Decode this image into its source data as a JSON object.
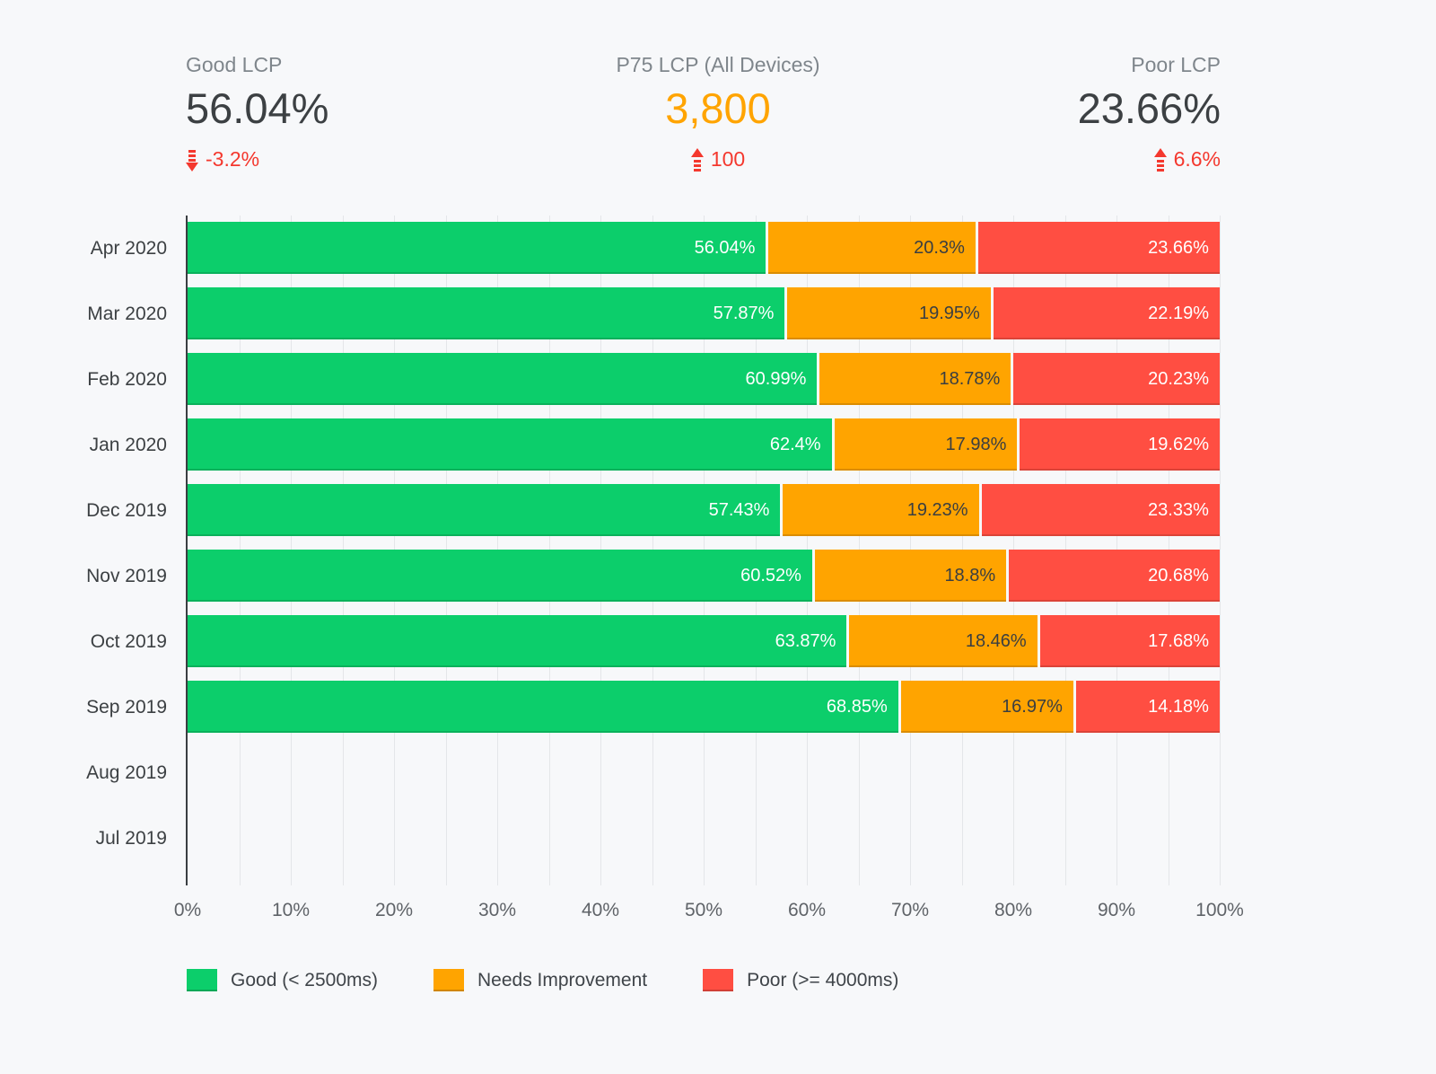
{
  "page": {
    "background": "#f7f8fa"
  },
  "kpis": [
    {
      "label": "Good LCP",
      "value": "56.04%",
      "delta": "-3.2%",
      "direction": "down",
      "value_color": "#3c4043",
      "delta_color": "#f4382e"
    },
    {
      "label": "P75 LCP (All Devices)",
      "value": "3,800",
      "delta": "100",
      "direction": "up",
      "value_color": "#ffa400",
      "delta_color": "#f4382e"
    },
    {
      "label": "Poor LCP",
      "value": "23.66%",
      "delta": "6.6%",
      "direction": "up",
      "value_color": "#3c4043",
      "delta_color": "#f4382e"
    }
  ],
  "chart_data": {
    "type": "bar",
    "orientation": "horizontal",
    "stacked": true,
    "grid": true,
    "grid_step": 5,
    "xlim": [
      0,
      100
    ],
    "categories": [
      "Apr 2020",
      "Mar 2020",
      "Feb 2020",
      "Jan 2020",
      "Dec 2019",
      "Nov 2019",
      "Oct 2019",
      "Sep 2019",
      "Aug 2019",
      "Jul 2019"
    ],
    "series": [
      {
        "name": "Good (< 2500ms)",
        "color": "#0cce6b",
        "label_color": "#ffffff",
        "values": [
          56.04,
          57.87,
          60.99,
          62.4,
          57.43,
          60.52,
          63.87,
          68.85,
          null,
          null
        ]
      },
      {
        "name": "Needs Improvement",
        "color": "#ffa400",
        "label_color": "#3a3e41",
        "values": [
          20.3,
          19.95,
          18.78,
          17.98,
          19.23,
          18.8,
          18.46,
          16.97,
          null,
          null
        ]
      },
      {
        "name": "Poor (>= 4000ms)",
        "color": "#ff4e42",
        "label_color": "#ffffff",
        "values": [
          23.66,
          22.19,
          20.23,
          19.62,
          23.33,
          20.68,
          17.68,
          14.18,
          null,
          null
        ]
      }
    ],
    "x_tick_labels": [
      "0%",
      "10%",
      "20%",
      "30%",
      "40%",
      "50%",
      "60%",
      "70%",
      "80%",
      "90%",
      "100%"
    ],
    "legend_position": "bottom",
    "legend": [
      "Good (< 2500ms)",
      "Needs Improvement",
      "Poor (>= 4000ms)"
    ]
  }
}
